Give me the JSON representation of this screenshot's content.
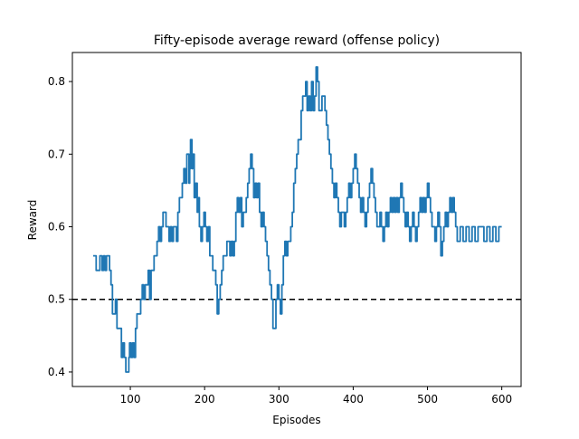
{
  "chart_data": {
    "type": "line",
    "title": "Fifty-episode average reward (offense policy)",
    "xlabel": "Episodes",
    "ylabel": "Reward",
    "xlim": [
      22,
      626
    ],
    "ylim": [
      0.38,
      0.84
    ],
    "xticks": [
      100,
      200,
      300,
      400,
      500,
      600
    ],
    "yticks": [
      0.4,
      0.5,
      0.6,
      0.7,
      0.8
    ],
    "ytick_labels": [
      "0.4",
      "0.5",
      "0.6",
      "0.7",
      "0.8"
    ],
    "grid": false,
    "series": [
      {
        "color": "#1f77b4",
        "points": [
          [
            50,
            0.56
          ],
          [
            52,
            0.56
          ],
          [
            54,
            0.54
          ],
          [
            58,
            0.54
          ],
          [
            59,
            0.56
          ],
          [
            61,
            0.56
          ],
          [
            62,
            0.54
          ],
          [
            64,
            0.56
          ],
          [
            66,
            0.54
          ],
          [
            68,
            0.56
          ],
          [
            70,
            0.56
          ],
          [
            72,
            0.54
          ],
          [
            74,
            0.52
          ],
          [
            76,
            0.48
          ],
          [
            79,
            0.48
          ],
          [
            80,
            0.5
          ],
          [
            81,
            0.5
          ],
          [
            82,
            0.46
          ],
          [
            84,
            0.46
          ],
          [
            86,
            0.46
          ],
          [
            88,
            0.42
          ],
          [
            90,
            0.44
          ],
          [
            92,
            0.42
          ],
          [
            94,
            0.4
          ],
          [
            96,
            0.4
          ],
          [
            98,
            0.42
          ],
          [
            99,
            0.44
          ],
          [
            101,
            0.42
          ],
          [
            103,
            0.44
          ],
          [
            105,
            0.42
          ],
          [
            107,
            0.46
          ],
          [
            109,
            0.48
          ],
          [
            112,
            0.48
          ],
          [
            114,
            0.5
          ],
          [
            116,
            0.52
          ],
          [
            118,
            0.5
          ],
          [
            120,
            0.52
          ],
          [
            122,
            0.52
          ],
          [
            124,
            0.54
          ],
          [
            126,
            0.5
          ],
          [
            128,
            0.54
          ],
          [
            130,
            0.54
          ],
          [
            132,
            0.56
          ],
          [
            134,
            0.56
          ],
          [
            136,
            0.58
          ],
          [
            138,
            0.6
          ],
          [
            140,
            0.58
          ],
          [
            142,
            0.6
          ],
          [
            144,
            0.62
          ],
          [
            147,
            0.62
          ],
          [
            148,
            0.6
          ],
          [
            150,
            0.6
          ],
          [
            152,
            0.58
          ],
          [
            154,
            0.6
          ],
          [
            156,
            0.58
          ],
          [
            158,
            0.6
          ],
          [
            160,
            0.6
          ],
          [
            162,
            0.58
          ],
          [
            164,
            0.62
          ],
          [
            166,
            0.64
          ],
          [
            168,
            0.64
          ],
          [
            170,
            0.66
          ],
          [
            172,
            0.68
          ],
          [
            174,
            0.66
          ],
          [
            176,
            0.7
          ],
          [
            178,
            0.7
          ],
          [
            179,
            0.66
          ],
          [
            180,
            0.68
          ],
          [
            181,
            0.72
          ],
          [
            183,
            0.68
          ],
          [
            184,
            0.7
          ],
          [
            186,
            0.64
          ],
          [
            188,
            0.66
          ],
          [
            190,
            0.62
          ],
          [
            191,
            0.64
          ],
          [
            193,
            0.6
          ],
          [
            195,
            0.58
          ],
          [
            197,
            0.6
          ],
          [
            199,
            0.62
          ],
          [
            201,
            0.6
          ],
          [
            203,
            0.58
          ],
          [
            205,
            0.6
          ],
          [
            207,
            0.56
          ],
          [
            209,
            0.56
          ],
          [
            211,
            0.54
          ],
          [
            213,
            0.54
          ],
          [
            215,
            0.52
          ],
          [
            217,
            0.48
          ],
          [
            219,
            0.5
          ],
          [
            221,
            0.52
          ],
          [
            223,
            0.54
          ],
          [
            225,
            0.56
          ],
          [
            228,
            0.56
          ],
          [
            230,
            0.58
          ],
          [
            232,
            0.58
          ],
          [
            234,
            0.56
          ],
          [
            236,
            0.58
          ],
          [
            238,
            0.56
          ],
          [
            240,
            0.58
          ],
          [
            242,
            0.62
          ],
          [
            244,
            0.64
          ],
          [
            246,
            0.62
          ],
          [
            248,
            0.64
          ],
          [
            250,
            0.6
          ],
          [
            252,
            0.62
          ],
          [
            254,
            0.62
          ],
          [
            256,
            0.64
          ],
          [
            258,
            0.66
          ],
          [
            260,
            0.68
          ],
          [
            262,
            0.7
          ],
          [
            264,
            0.68
          ],
          [
            266,
            0.64
          ],
          [
            268,
            0.66
          ],
          [
            270,
            0.64
          ],
          [
            272,
            0.66
          ],
          [
            274,
            0.62
          ],
          [
            276,
            0.6
          ],
          [
            278,
            0.62
          ],
          [
            280,
            0.6
          ],
          [
            282,
            0.58
          ],
          [
            284,
            0.56
          ],
          [
            286,
            0.54
          ],
          [
            288,
            0.52
          ],
          [
            290,
            0.5
          ],
          [
            292,
            0.46
          ],
          [
            294,
            0.46
          ],
          [
            296,
            0.5
          ],
          [
            298,
            0.52
          ],
          [
            300,
            0.5
          ],
          [
            302,
            0.48
          ],
          [
            304,
            0.52
          ],
          [
            306,
            0.56
          ],
          [
            308,
            0.58
          ],
          [
            310,
            0.56
          ],
          [
            312,
            0.58
          ],
          [
            314,
            0.58
          ],
          [
            316,
            0.6
          ],
          [
            318,
            0.62
          ],
          [
            320,
            0.66
          ],
          [
            322,
            0.68
          ],
          [
            324,
            0.7
          ],
          [
            326,
            0.72
          ],
          [
            328,
            0.72
          ],
          [
            330,
            0.76
          ],
          [
            332,
            0.78
          ],
          [
            334,
            0.78
          ],
          [
            336,
            0.8
          ],
          [
            338,
            0.76
          ],
          [
            340,
            0.78
          ],
          [
            342,
            0.76
          ],
          [
            344,
            0.8
          ],
          [
            346,
            0.76
          ],
          [
            348,
            0.78
          ],
          [
            350,
            0.82
          ],
          [
            352,
            0.8
          ],
          [
            354,
            0.76
          ],
          [
            356,
            0.76
          ],
          [
            358,
            0.78
          ],
          [
            360,
            0.78
          ],
          [
            362,
            0.76
          ],
          [
            364,
            0.74
          ],
          [
            366,
            0.72
          ],
          [
            368,
            0.7
          ],
          [
            370,
            0.68
          ],
          [
            372,
            0.66
          ],
          [
            374,
            0.64
          ],
          [
            376,
            0.66
          ],
          [
            378,
            0.64
          ],
          [
            380,
            0.62
          ],
          [
            382,
            0.6
          ],
          [
            384,
            0.62
          ],
          [
            386,
            0.62
          ],
          [
            388,
            0.6
          ],
          [
            390,
            0.62
          ],
          [
            392,
            0.64
          ],
          [
            394,
            0.66
          ],
          [
            396,
            0.64
          ],
          [
            398,
            0.66
          ],
          [
            400,
            0.68
          ],
          [
            402,
            0.7
          ],
          [
            404,
            0.68
          ],
          [
            406,
            0.66
          ],
          [
            408,
            0.64
          ],
          [
            410,
            0.62
          ],
          [
            412,
            0.64
          ],
          [
            414,
            0.62
          ],
          [
            416,
            0.6
          ],
          [
            418,
            0.62
          ],
          [
            420,
            0.64
          ],
          [
            422,
            0.66
          ],
          [
            424,
            0.68
          ],
          [
            426,
            0.66
          ],
          [
            428,
            0.64
          ],
          [
            430,
            0.62
          ],
          [
            432,
            0.6
          ],
          [
            434,
            0.6
          ],
          [
            436,
            0.62
          ],
          [
            438,
            0.6
          ],
          [
            440,
            0.58
          ],
          [
            442,
            0.6
          ],
          [
            444,
            0.62
          ],
          [
            446,
            0.6
          ],
          [
            448,
            0.62
          ],
          [
            450,
            0.64
          ],
          [
            452,
            0.62
          ],
          [
            454,
            0.64
          ],
          [
            456,
            0.62
          ],
          [
            458,
            0.64
          ],
          [
            460,
            0.62
          ],
          [
            462,
            0.64
          ],
          [
            464,
            0.66
          ],
          [
            466,
            0.64
          ],
          [
            468,
            0.62
          ],
          [
            470,
            0.6
          ],
          [
            472,
            0.62
          ],
          [
            474,
            0.6
          ],
          [
            476,
            0.58
          ],
          [
            478,
            0.6
          ],
          [
            480,
            0.62
          ],
          [
            482,
            0.6
          ],
          [
            484,
            0.58
          ],
          [
            486,
            0.6
          ],
          [
            488,
            0.62
          ],
          [
            490,
            0.64
          ],
          [
            492,
            0.62
          ],
          [
            494,
            0.64
          ],
          [
            496,
            0.62
          ],
          [
            498,
            0.64
          ],
          [
            500,
            0.66
          ],
          [
            502,
            0.64
          ],
          [
            504,
            0.62
          ],
          [
            506,
            0.6
          ],
          [
            508,
            0.6
          ],
          [
            510,
            0.58
          ],
          [
            512,
            0.6
          ],
          [
            514,
            0.62
          ],
          [
            516,
            0.6
          ],
          [
            518,
            0.56
          ],
          [
            520,
            0.58
          ],
          [
            522,
            0.6
          ],
          [
            524,
            0.62
          ],
          [
            526,
            0.6
          ],
          [
            528,
            0.62
          ],
          [
            530,
            0.64
          ],
          [
            532,
            0.62
          ],
          [
            534,
            0.64
          ],
          [
            536,
            0.62
          ],
          [
            538,
            0.6
          ],
          [
            540,
            0.58
          ],
          [
            542,
            0.58
          ],
          [
            544,
            0.6
          ],
          [
            546,
            0.6
          ],
          [
            548,
            0.58
          ],
          [
            550,
            0.58
          ],
          [
            552,
            0.6
          ],
          [
            554,
            0.6
          ],
          [
            556,
            0.58
          ],
          [
            558,
            0.58
          ],
          [
            560,
            0.6
          ],
          [
            562,
            0.6
          ],
          [
            564,
            0.58
          ],
          [
            566,
            0.58
          ],
          [
            568,
            0.6
          ],
          [
            570,
            0.6
          ],
          [
            572,
            0.6
          ],
          [
            574,
            0.6
          ],
          [
            576,
            0.58
          ],
          [
            578,
            0.58
          ],
          [
            580,
            0.6
          ],
          [
            582,
            0.6
          ],
          [
            584,
            0.58
          ],
          [
            586,
            0.58
          ],
          [
            588,
            0.6
          ],
          [
            590,
            0.6
          ],
          [
            592,
            0.58
          ],
          [
            594,
            0.58
          ],
          [
            596,
            0.6
          ],
          [
            598,
            0.6
          ],
          [
            600,
            0.6
          ]
        ]
      }
    ],
    "reference_line": {
      "y": 0.5,
      "style": "dashed",
      "color": "#000000"
    }
  }
}
